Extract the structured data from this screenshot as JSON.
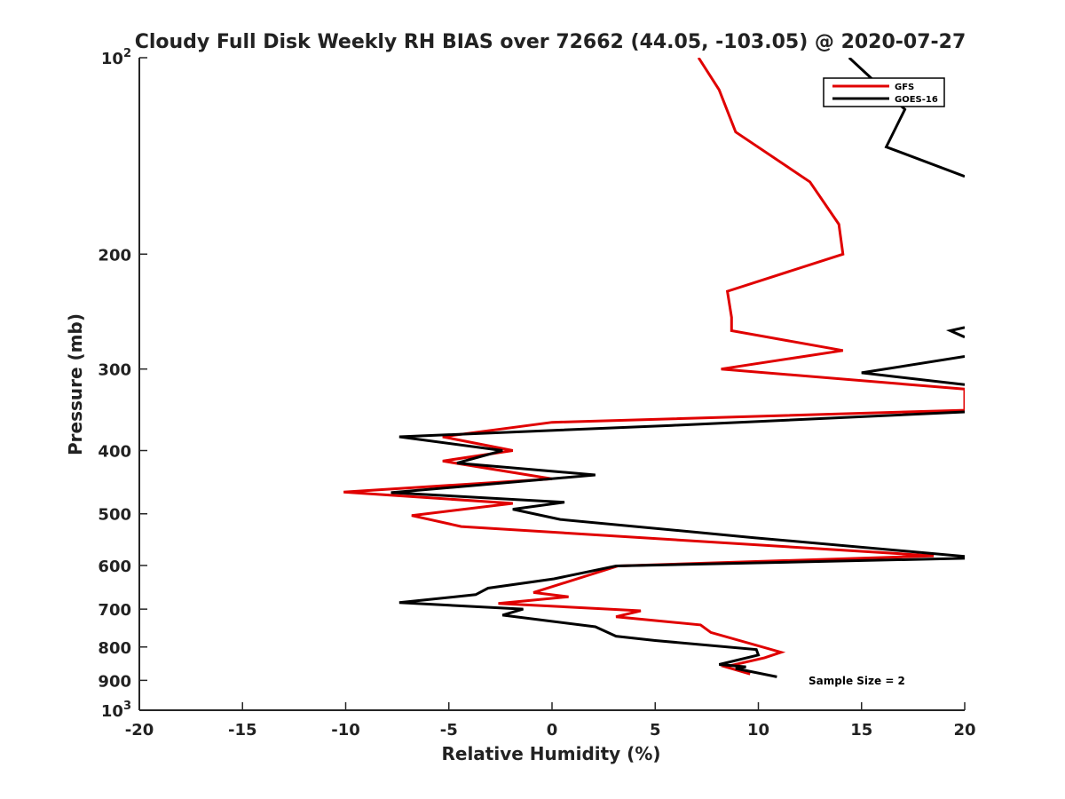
{
  "chart_data": {
    "type": "line",
    "title": "Cloudy Full Disk Weekly RH BIAS over 72662 (44.05, -103.05) @ 2020-07-27",
    "xlabel": "Relative Humidity (%)",
    "ylabel": "Pressure (mb)",
    "xlim": [
      -20,
      20
    ],
    "ylim": [
      100,
      1000
    ],
    "yscale": "log",
    "y_reversed": true,
    "xticks": [
      -20,
      -15,
      -10,
      -5,
      0,
      5,
      10,
      15,
      20
    ],
    "xtick_labels": [
      "-20",
      "-15",
      "-10",
      "-5",
      "0",
      "5",
      "10",
      "15",
      "20"
    ],
    "yticks": [
      100,
      200,
      300,
      400,
      500,
      600,
      700,
      800,
      900,
      1000
    ],
    "ytick_labels": [
      {
        "base": "10",
        "exp": "2"
      },
      {
        "base": "200",
        "exp": ""
      },
      {
        "base": "300",
        "exp": ""
      },
      {
        "base": "400",
        "exp": ""
      },
      {
        "base": "500",
        "exp": ""
      },
      {
        "base": "600",
        "exp": ""
      },
      {
        "base": "700",
        "exp": ""
      },
      {
        "base": "800",
        "exp": ""
      },
      {
        "base": "900",
        "exp": ""
      },
      {
        "base": "10",
        "exp": "3"
      }
    ],
    "grid": false,
    "legend_position": "top-right",
    "annotation": "Sample Size = 2",
    "series": [
      {
        "name": "GFS",
        "color": "#e00000",
        "points": [
          [
            7.1,
            100
          ],
          [
            8.1,
            112
          ],
          [
            8.9,
            130
          ],
          [
            12.5,
            155
          ],
          [
            13.9,
            180
          ],
          [
            14.1,
            200
          ],
          [
            8.5,
            228
          ],
          [
            8.7,
            250
          ],
          [
            8.7,
            262
          ],
          [
            14.1,
            281
          ],
          [
            8.2,
            300
          ],
          [
            20,
            322
          ],
          [
            20,
            347
          ],
          [
            0,
            362
          ],
          [
            -5.3,
            381
          ],
          [
            -1.9,
            400
          ],
          [
            -5.3,
            415
          ],
          [
            0,
            442
          ],
          [
            -10.1,
            463
          ],
          [
            -1.9,
            482
          ],
          [
            -6.8,
            503
          ],
          [
            -4.4,
            523
          ],
          [
            18.5,
            580
          ],
          [
            3.2,
            601
          ],
          [
            -0.9,
            660
          ],
          [
            0.8,
            670
          ],
          [
            -2.6,
            686
          ],
          [
            4.3,
            704
          ],
          [
            3.1,
            719
          ],
          [
            7.2,
            740
          ],
          [
            7.7,
            760
          ],
          [
            11.1,
            815
          ],
          [
            10.3,
            831
          ],
          [
            8.4,
            858
          ],
          [
            9.6,
            880
          ]
        ]
      },
      {
        "name": "GOES-16",
        "color": "#000000",
        "points": [
          [
            14.4,
            100
          ],
          [
            17.1,
            120
          ],
          [
            16.2,
            137
          ],
          [
            20,
            152
          ],
          [
            20,
            259
          ],
          [
            19.3,
            262
          ],
          [
            20,
            268
          ],
          [
            20,
            287
          ],
          [
            15,
            304
          ],
          [
            20,
            317
          ],
          [
            20,
            349
          ],
          [
            5.8,
            366
          ],
          [
            -7.4,
            381
          ],
          [
            -2.4,
            400
          ],
          [
            -4.6,
            418
          ],
          [
            2.1,
            436
          ],
          [
            -7.8,
            464
          ],
          [
            0.6,
            480
          ],
          [
            -1.9,
            492
          ],
          [
            0.4,
            510
          ],
          [
            9.8,
            544
          ],
          [
            20,
            581
          ],
          [
            20,
            585
          ],
          [
            3.1,
            601
          ],
          [
            0.1,
            629
          ],
          [
            -3.1,
            650
          ],
          [
            -3.7,
            665
          ],
          [
            -7.4,
            684
          ],
          [
            -1.4,
            700
          ],
          [
            -2.4,
            715
          ],
          [
            2.1,
            745
          ],
          [
            3.1,
            770
          ],
          [
            5.0,
            782
          ],
          [
            9.9,
            807
          ],
          [
            10.0,
            823
          ],
          [
            8.1,
            851
          ],
          [
            9.4,
            858
          ],
          [
            8.9,
            863
          ],
          [
            10.9,
            889
          ]
        ],
        "segments": [
          [
            0,
            4
          ],
          [
            4,
            7
          ],
          [
            7,
            10
          ],
          [
            10,
            39
          ]
        ]
      }
    ]
  }
}
